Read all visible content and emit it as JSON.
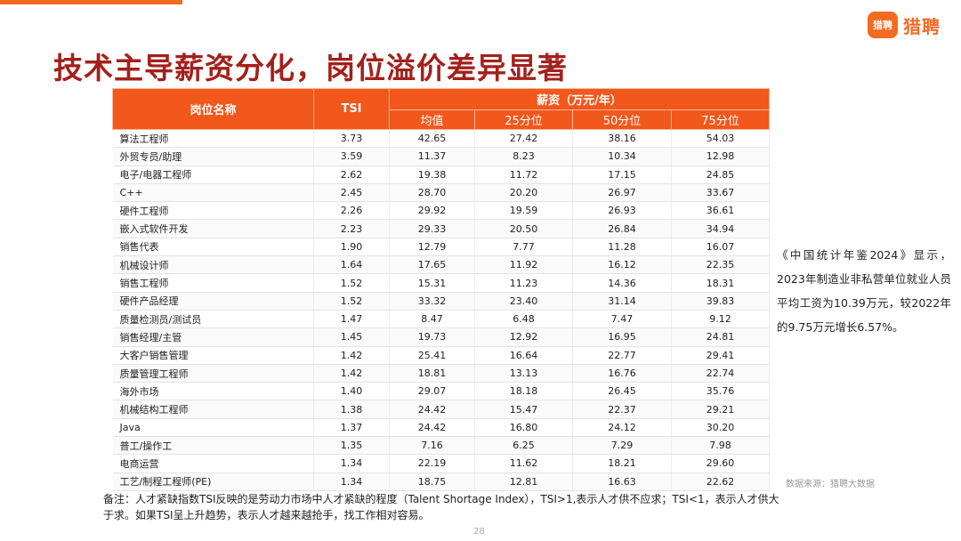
{
  "brand": {
    "logo_mark": "猎聘",
    "name": "猎聘"
  },
  "title": "技术主导薪资分化，岗位溢价差异显著",
  "table": {
    "header_position": "岗位名称",
    "header_tsi": "TSI",
    "header_salary": "薪资（万元/年）",
    "sub_headers": [
      "均值",
      "25分位",
      "50分位",
      "75分位"
    ],
    "rows": [
      {
        "name": "算法工程师",
        "tsi": "3.73",
        "mean": "42.65",
        "p25": "27.42",
        "p50": "38.16",
        "p75": "54.03"
      },
      {
        "name": "外贸专员/助理",
        "tsi": "3.59",
        "mean": "11.37",
        "p25": "8.23",
        "p50": "10.34",
        "p75": "12.98"
      },
      {
        "name": "电子/电器工程师",
        "tsi": "2.62",
        "mean": "19.38",
        "p25": "11.72",
        "p50": "17.15",
        "p75": "24.85"
      },
      {
        "name": "C++",
        "tsi": "2.45",
        "mean": "28.70",
        "p25": "20.20",
        "p50": "26.97",
        "p75": "33.67"
      },
      {
        "name": "硬件工程师",
        "tsi": "2.26",
        "mean": "29.92",
        "p25": "19.59",
        "p50": "26.93",
        "p75": "36.61"
      },
      {
        "name": "嵌入式软件开发",
        "tsi": "2.23",
        "mean": "29.33",
        "p25": "20.50",
        "p50": "26.84",
        "p75": "34.94"
      },
      {
        "name": "销售代表",
        "tsi": "1.90",
        "mean": "12.79",
        "p25": "7.77",
        "p50": "11.28",
        "p75": "16.07"
      },
      {
        "name": "机械设计师",
        "tsi": "1.64",
        "mean": "17.65",
        "p25": "11.92",
        "p50": "16.12",
        "p75": "22.35"
      },
      {
        "name": "销售工程师",
        "tsi": "1.52",
        "mean": "15.31",
        "p25": "11.23",
        "p50": "14.36",
        "p75": "18.31"
      },
      {
        "name": "硬件产品经理",
        "tsi": "1.52",
        "mean": "33.32",
        "p25": "23.40",
        "p50": "31.14",
        "p75": "39.83"
      },
      {
        "name": "质量检测员/测试员",
        "tsi": "1.47",
        "mean": "8.47",
        "p25": "6.48",
        "p50": "7.47",
        "p75": "9.12"
      },
      {
        "name": "销售经理/主管",
        "tsi": "1.45",
        "mean": "19.73",
        "p25": "12.92",
        "p50": "16.95",
        "p75": "24.81"
      },
      {
        "name": "大客户销售管理",
        "tsi": "1.42",
        "mean": "25.41",
        "p25": "16.64",
        "p50": "22.77",
        "p75": "29.41"
      },
      {
        "name": "质量管理工程师",
        "tsi": "1.42",
        "mean": "18.81",
        "p25": "13.13",
        "p50": "16.76",
        "p75": "22.74"
      },
      {
        "name": "海外市场",
        "tsi": "1.40",
        "mean": "29.07",
        "p25": "18.18",
        "p50": "26.45",
        "p75": "35.76"
      },
      {
        "name": "机械结构工程师",
        "tsi": "1.38",
        "mean": "24.42",
        "p25": "15.47",
        "p50": "22.37",
        "p75": "29.21"
      },
      {
        "name": "Java",
        "tsi": "1.37",
        "mean": "24.42",
        "p25": "16.80",
        "p50": "24.12",
        "p75": "30.20"
      },
      {
        "name": "普工/操作工",
        "tsi": "1.35",
        "mean": "7.16",
        "p25": "6.25",
        "p50": "7.29",
        "p75": "7.98"
      },
      {
        "name": "电商运营",
        "tsi": "1.34",
        "mean": "22.19",
        "p25": "11.62",
        "p50": "18.21",
        "p75": "29.60"
      },
      {
        "name": "工艺/制程工程师(PE)",
        "tsi": "1.34",
        "mean": "18.75",
        "p25": "12.81",
        "p50": "16.63",
        "p75": "22.62"
      }
    ]
  },
  "side_note": "《中国统计年鉴2024》显示，2023年制造业非私营单位就业人员平均工资为10.39万元，较2022年的9.75万元增长6.57%。",
  "source": "数据来源：猎聘大数据",
  "footnote": "备注：人才紧缺指数TSI反映的是劳动力市场中人才紧缺的程度（Talent Shortage Index），TSI>1,表示人才供不应求；TSI<1，表示人才供大于求。如果TSI呈上升趋势，表示人才越来越抢手，找工作相对容易。",
  "page_number": "28",
  "colors": {
    "accent": "#f2571c",
    "title": "#a3201c"
  }
}
